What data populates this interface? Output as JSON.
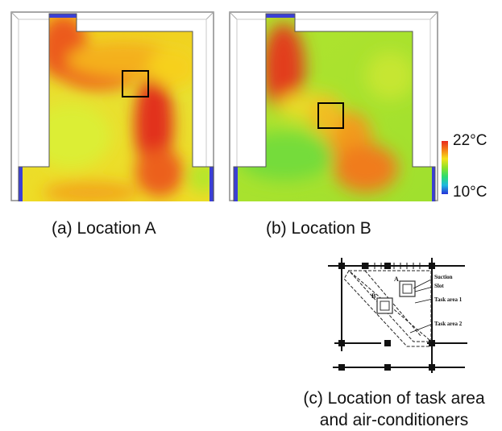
{
  "panels": {
    "a": {
      "caption": "(a) Location A"
    },
    "b": {
      "caption": "(b) Location B"
    },
    "c": {
      "caption_line1": "(c) Location of task area",
      "caption_line2": "and air-conditioners",
      "labels": {
        "suction": "Suction",
        "slot": "Slot",
        "task_area_1": "Task area 1",
        "task_area_2": "Task area 2",
        "A": "A",
        "B": "B"
      }
    }
  },
  "colorbar": {
    "max_label": "22°C",
    "min_label": "10°C",
    "colors": [
      "#e8281e",
      "#f57f17",
      "#f5e11a",
      "#8ee227",
      "#2edc6f",
      "#20b8e0",
      "#2730d8"
    ]
  }
}
